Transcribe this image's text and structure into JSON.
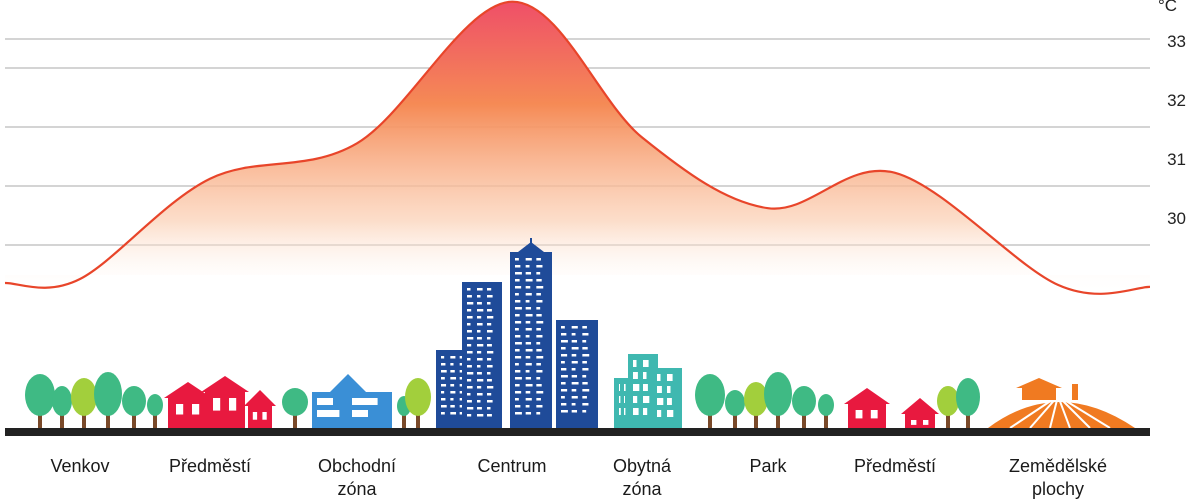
{
  "chart_data": {
    "type": "line",
    "unit": "°C",
    "y_ticks": [
      "33",
      "32",
      "31",
      "30"
    ],
    "gridlines": true,
    "ylim": [
      29.1,
      33.7
    ],
    "categories": [
      "Venkov",
      "Předměstí",
      "Obchodní\nzóna",
      "Centrum",
      "Obytná\nzóna",
      "Park",
      "Předměstí",
      "Zemědělské\nplochy"
    ],
    "series": [
      {
        "values": [
          29.0,
          30.7,
          31.3,
          33.7,
          31.4,
          30.2,
          30.8,
          28.9
        ]
      }
    ]
  },
  "colors": {
    "curve": "#e8452a",
    "fill_top": "#ef4f68",
    "fill_mid": "#f58a55",
    "gridline": "#a8a8a8",
    "ground": "#222222",
    "tree_dark": "#3fba84",
    "tree_light": "#a2cf3c",
    "house": "#e8193f",
    "office": "#3a8fd6",
    "skyscraper": "#1f4b99",
    "residential": "#3fb8b0",
    "farm": "#f07a21"
  },
  "illustrations": [
    "trees",
    "houses",
    "office-building",
    "skyscrapers",
    "apartment-towers",
    "park-trees",
    "houses",
    "farm"
  ]
}
